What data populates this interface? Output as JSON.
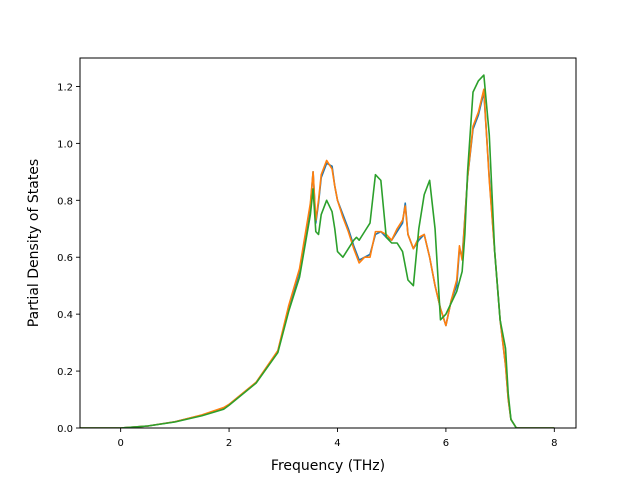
{
  "chart_data": {
    "type": "line",
    "title": "",
    "xlabel": "Frequency (THz)",
    "ylabel": "Partial Density of States",
    "xlim": [
      -0.75,
      8.4
    ],
    "ylim": [
      0,
      1.3
    ],
    "xticks": [
      0,
      2,
      4,
      6,
      8
    ],
    "yticks": [
      0.0,
      0.2,
      0.4,
      0.6,
      0.8,
      1.0,
      1.2
    ],
    "xtick_labels": [
      "0",
      "2",
      "4",
      "6",
      "8"
    ],
    "ytick_labels": [
      "0.0",
      "0.2",
      "0.4",
      "0.6",
      "0.8",
      "1.0",
      "1.2"
    ],
    "grid": false,
    "legend": "none",
    "series": [
      {
        "color": "#1f77b4",
        "x": [
          -0.75,
          0,
          0.5,
          1.0,
          1.5,
          1.9,
          2.0,
          2.5,
          2.9,
          3.1,
          3.3,
          3.5,
          3.55,
          3.6,
          3.65,
          3.7,
          3.8,
          3.9,
          3.95,
          4.0,
          4.1,
          4.2,
          4.3,
          4.4,
          4.5,
          4.6,
          4.7,
          4.8,
          4.9,
          5.0,
          5.1,
          5.2,
          5.25,
          5.3,
          5.4,
          5.5,
          5.6,
          5.7,
          5.8,
          5.9,
          6.0,
          6.1,
          6.2,
          6.25,
          6.3,
          6.4,
          6.5,
          6.6,
          6.7,
          6.8,
          6.9,
          7.0,
          7.1,
          7.15,
          7.2,
          7.3,
          8.0
        ],
        "values": [
          0.0,
          0.0,
          0.007,
          0.022,
          0.045,
          0.07,
          0.082,
          0.16,
          0.27,
          0.42,
          0.55,
          0.78,
          0.9,
          0.72,
          0.79,
          0.88,
          0.93,
          0.92,
          0.85,
          0.8,
          0.75,
          0.7,
          0.64,
          0.59,
          0.6,
          0.61,
          0.68,
          0.69,
          0.67,
          0.66,
          0.69,
          0.72,
          0.79,
          0.68,
          0.63,
          0.66,
          0.68,
          0.6,
          0.5,
          0.42,
          0.36,
          0.45,
          0.5,
          0.63,
          0.6,
          0.88,
          1.05,
          1.1,
          1.18,
          0.88,
          0.62,
          0.38,
          0.22,
          0.1,
          0.03,
          0.0,
          0.0
        ]
      },
      {
        "color": "#ff7f0e",
        "x": [
          -0.75,
          0,
          0.5,
          1.0,
          1.5,
          1.9,
          2.0,
          2.5,
          2.9,
          3.1,
          3.3,
          3.5,
          3.55,
          3.6,
          3.65,
          3.7,
          3.8,
          3.9,
          3.95,
          4.0,
          4.1,
          4.2,
          4.3,
          4.4,
          4.5,
          4.6,
          4.7,
          4.8,
          4.9,
          5.0,
          5.1,
          5.2,
          5.25,
          5.3,
          5.4,
          5.5,
          5.6,
          5.7,
          5.8,
          5.9,
          6.0,
          6.1,
          6.2,
          6.25,
          6.3,
          6.4,
          6.5,
          6.6,
          6.7,
          6.8,
          6.9,
          7.0,
          7.1,
          7.15,
          7.2,
          7.3,
          8.0
        ],
        "values": [
          0.0,
          0.0,
          0.007,
          0.022,
          0.046,
          0.072,
          0.083,
          0.161,
          0.272,
          0.43,
          0.56,
          0.79,
          0.9,
          0.73,
          0.8,
          0.89,
          0.94,
          0.91,
          0.85,
          0.8,
          0.74,
          0.69,
          0.63,
          0.58,
          0.6,
          0.6,
          0.69,
          0.69,
          0.68,
          0.66,
          0.7,
          0.73,
          0.78,
          0.68,
          0.63,
          0.67,
          0.68,
          0.6,
          0.5,
          0.42,
          0.36,
          0.45,
          0.52,
          0.64,
          0.59,
          0.88,
          1.06,
          1.11,
          1.19,
          0.87,
          0.62,
          0.38,
          0.22,
          0.1,
          0.03,
          0.0,
          0.0
        ]
      },
      {
        "color": "#2ca02c",
        "x": [
          -0.75,
          0,
          0.5,
          1.0,
          1.5,
          1.9,
          2.0,
          2.5,
          2.9,
          3.1,
          3.3,
          3.5,
          3.55,
          3.6,
          3.65,
          3.7,
          3.8,
          3.9,
          3.95,
          4.0,
          4.1,
          4.2,
          4.3,
          4.35,
          4.4,
          4.5,
          4.6,
          4.7,
          4.8,
          4.9,
          5.0,
          5.1,
          5.2,
          5.3,
          5.4,
          5.5,
          5.6,
          5.7,
          5.8,
          5.9,
          6.0,
          6.1,
          6.2,
          6.3,
          6.35,
          6.4,
          6.5,
          6.6,
          6.7,
          6.8,
          6.9,
          7.0,
          7.1,
          7.15,
          7.2,
          7.3,
          8.0
        ],
        "values": [
          0.0,
          0.0,
          0.007,
          0.021,
          0.043,
          0.066,
          0.08,
          0.158,
          0.265,
          0.41,
          0.53,
          0.75,
          0.84,
          0.69,
          0.68,
          0.75,
          0.8,
          0.76,
          0.7,
          0.62,
          0.6,
          0.63,
          0.66,
          0.67,
          0.66,
          0.69,
          0.72,
          0.89,
          0.87,
          0.67,
          0.65,
          0.65,
          0.62,
          0.52,
          0.5,
          0.7,
          0.82,
          0.87,
          0.7,
          0.38,
          0.4,
          0.44,
          0.48,
          0.55,
          0.68,
          0.9,
          1.18,
          1.22,
          1.24,
          1.03,
          0.62,
          0.38,
          0.28,
          0.12,
          0.03,
          0.0,
          0.0
        ]
      }
    ]
  }
}
